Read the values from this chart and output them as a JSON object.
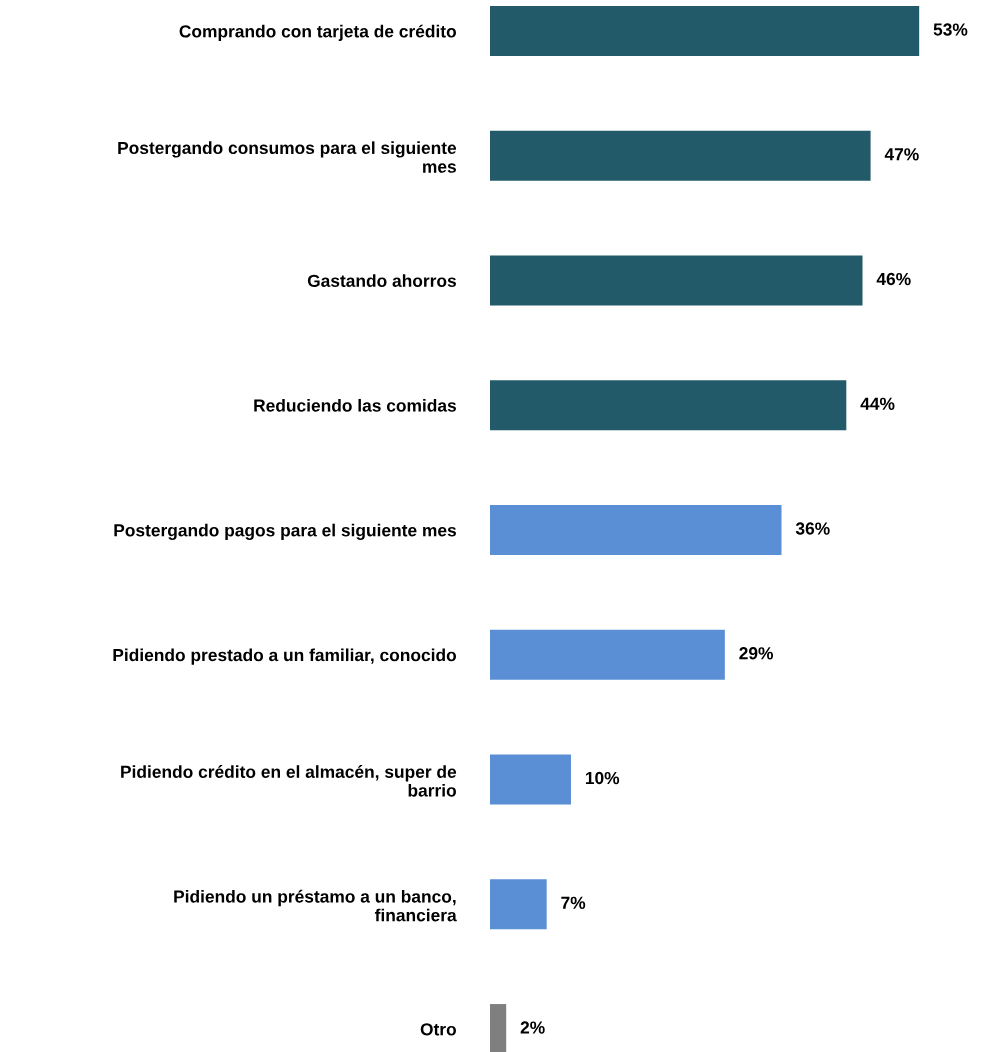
{
  "chart_data": {
    "type": "bar",
    "orientation": "horizontal",
    "categories": [
      "Comprando con tarjeta de crédito",
      "Postergando consumos para el siguiente\nmes",
      "Gastando ahorros",
      "Reduciendo las comidas",
      "Postergando pagos para el siguiente mes",
      "Pidiendo prestado a un familiar, conocido",
      "Pidiendo crédito en el almacén, super de\nbarrio",
      "Pidiendo un préstamo a un banco,\nfinanciera",
      "Otro"
    ],
    "values": [
      53,
      47,
      46,
      44,
      36,
      29,
      10,
      7,
      2
    ],
    "colors": [
      "#235a69",
      "#235a69",
      "#235a69",
      "#235a69",
      "#5b8fd5",
      "#5b8fd5",
      "#5b8fd5",
      "#5b8fd5",
      "#7f7f7f"
    ],
    "value_labels": [
      "53%",
      "47%",
      "46%",
      "44%",
      "36%",
      "29%",
      "10%",
      "7%",
      "2%"
    ],
    "grid": false,
    "legend": false
  }
}
